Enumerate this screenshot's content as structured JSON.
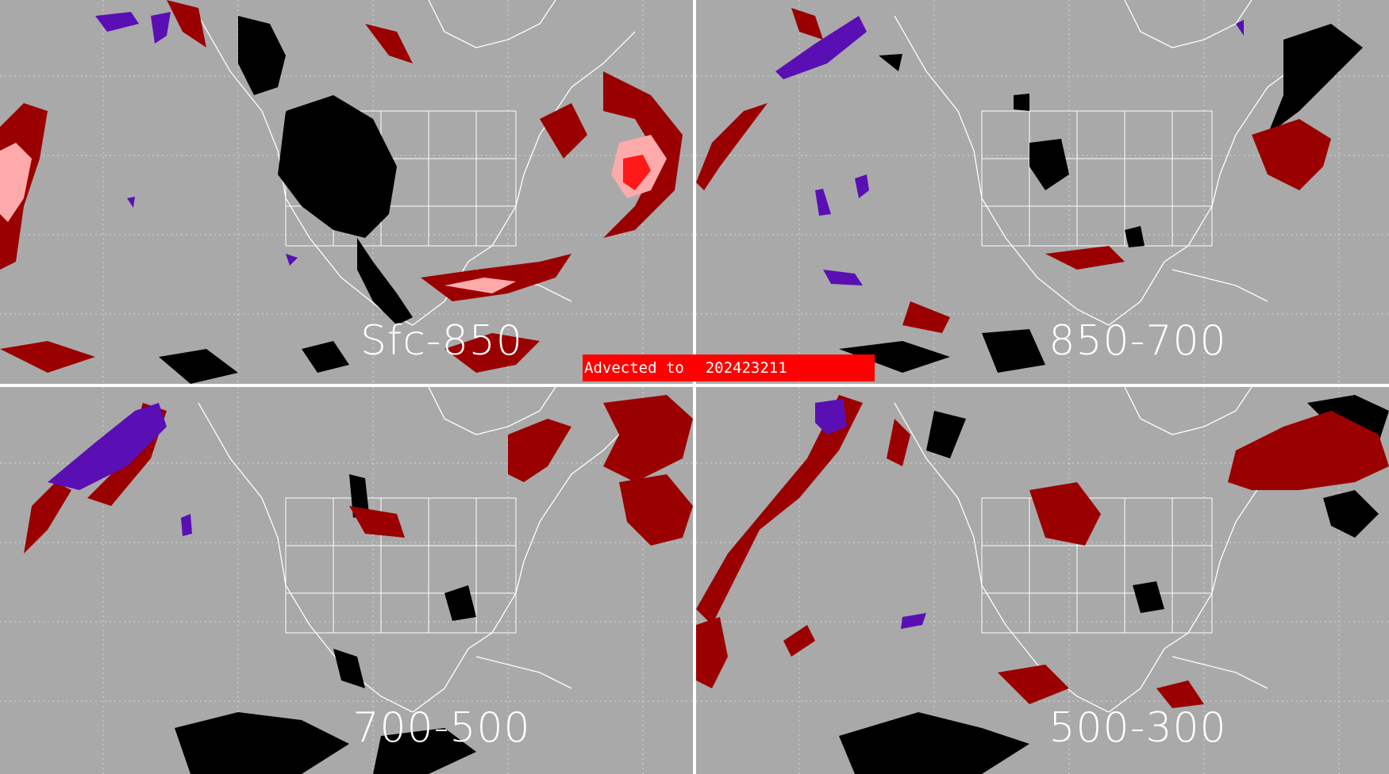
{
  "banner": {
    "prefix": "Advected to",
    "time": "202423211"
  },
  "panels": [
    {
      "id": "tl",
      "label": "Sfc-850"
    },
    {
      "id": "tr",
      "label": "850-700"
    },
    {
      "id": "bl",
      "label": "700-500"
    },
    {
      "id": "br",
      "label": "500-300"
    }
  ],
  "colors": {
    "background": "#a9a9a9",
    "boundaries": "#ffffff",
    "dark_red": "#9b0000",
    "pink": "#ffaaaa",
    "bright_red": "#ff1a1a",
    "black": "#000000",
    "purple": "#5a0fb4",
    "banner": "#ff0000"
  }
}
